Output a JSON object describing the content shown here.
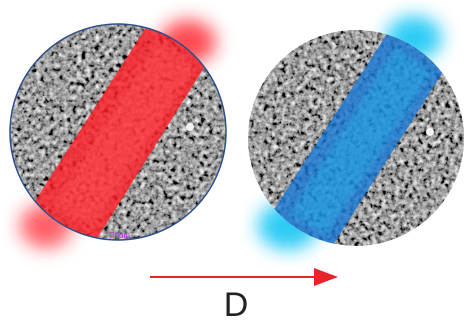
{
  "figure": {
    "label": "D",
    "left_panel": {
      "band_color": "#ff1f26",
      "scale_text": "20um",
      "scale_text_color": "#c02bff"
    },
    "right_panel": {
      "band_color": "#1677d6",
      "glow_color": "#21c9f5"
    },
    "arrow": {
      "color": "#e8242a",
      "direction": "right"
    },
    "outline_color": "#2b4f8a"
  }
}
